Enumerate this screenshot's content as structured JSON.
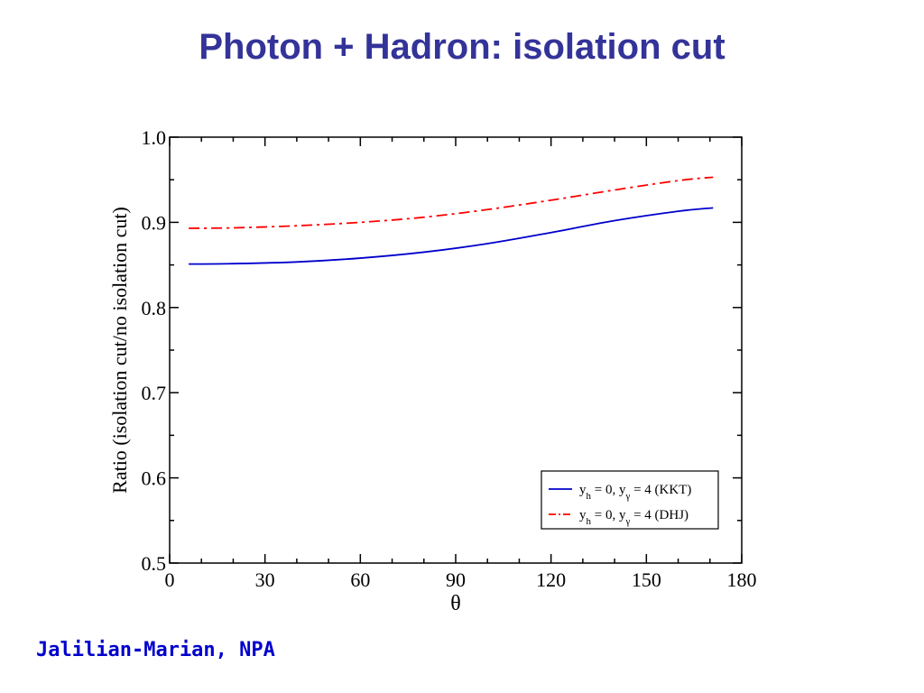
{
  "slide": {
    "title": "Photon + Hadron: isolation cut",
    "citation": "Jalilian-Marian, NPA"
  },
  "colors": {
    "title": "#333399",
    "kkt": "#0000cc",
    "dhj": "#ff0000",
    "citation": "#0000cc"
  },
  "chart_data": {
    "type": "line",
    "title": "",
    "xlabel": "θ",
    "ylabel": "Ratio (isolation cut/no isolation cut)",
    "xlim": [
      0,
      180
    ],
    "ylim": [
      0.5,
      1.0
    ],
    "x_ticks": [
      "0",
      "30",
      "60",
      "90",
      "120",
      "150",
      "180"
    ],
    "y_ticks": [
      "0.5",
      "0.6",
      "0.7",
      "0.8",
      "0.9",
      "1.0"
    ],
    "grid": false,
    "legend_position": "bottom-right",
    "series": [
      {
        "name": "y_h = 0, y_γ = 4 (KKT)",
        "label_parts": {
          "a": "y",
          "a_sub": "h",
          "mid": " = 0, y",
          "b_sub": "γ",
          "tail": " = 4 (KKT)"
        },
        "style": "solid",
        "color": "#0000cc",
        "x": [
          6,
          20,
          40,
          60,
          80,
          100,
          120,
          140,
          160,
          171
        ],
        "y": [
          0.851,
          0.8515,
          0.8535,
          0.858,
          0.865,
          0.875,
          0.888,
          0.902,
          0.913,
          0.917
        ]
      },
      {
        "name": "y_h = 0, y_γ = 4 (DHJ)",
        "label_parts": {
          "a": "y",
          "a_sub": "h",
          "mid": " = 0, y",
          "b_sub": "γ",
          "tail": " = 4 (DHJ)"
        },
        "style": "dashdot",
        "color": "#ff0000",
        "x": [
          6,
          20,
          40,
          60,
          80,
          100,
          120,
          140,
          160,
          171
        ],
        "y": [
          0.893,
          0.8935,
          0.896,
          0.9,
          0.906,
          0.915,
          0.926,
          0.938,
          0.949,
          0.953
        ]
      }
    ]
  }
}
